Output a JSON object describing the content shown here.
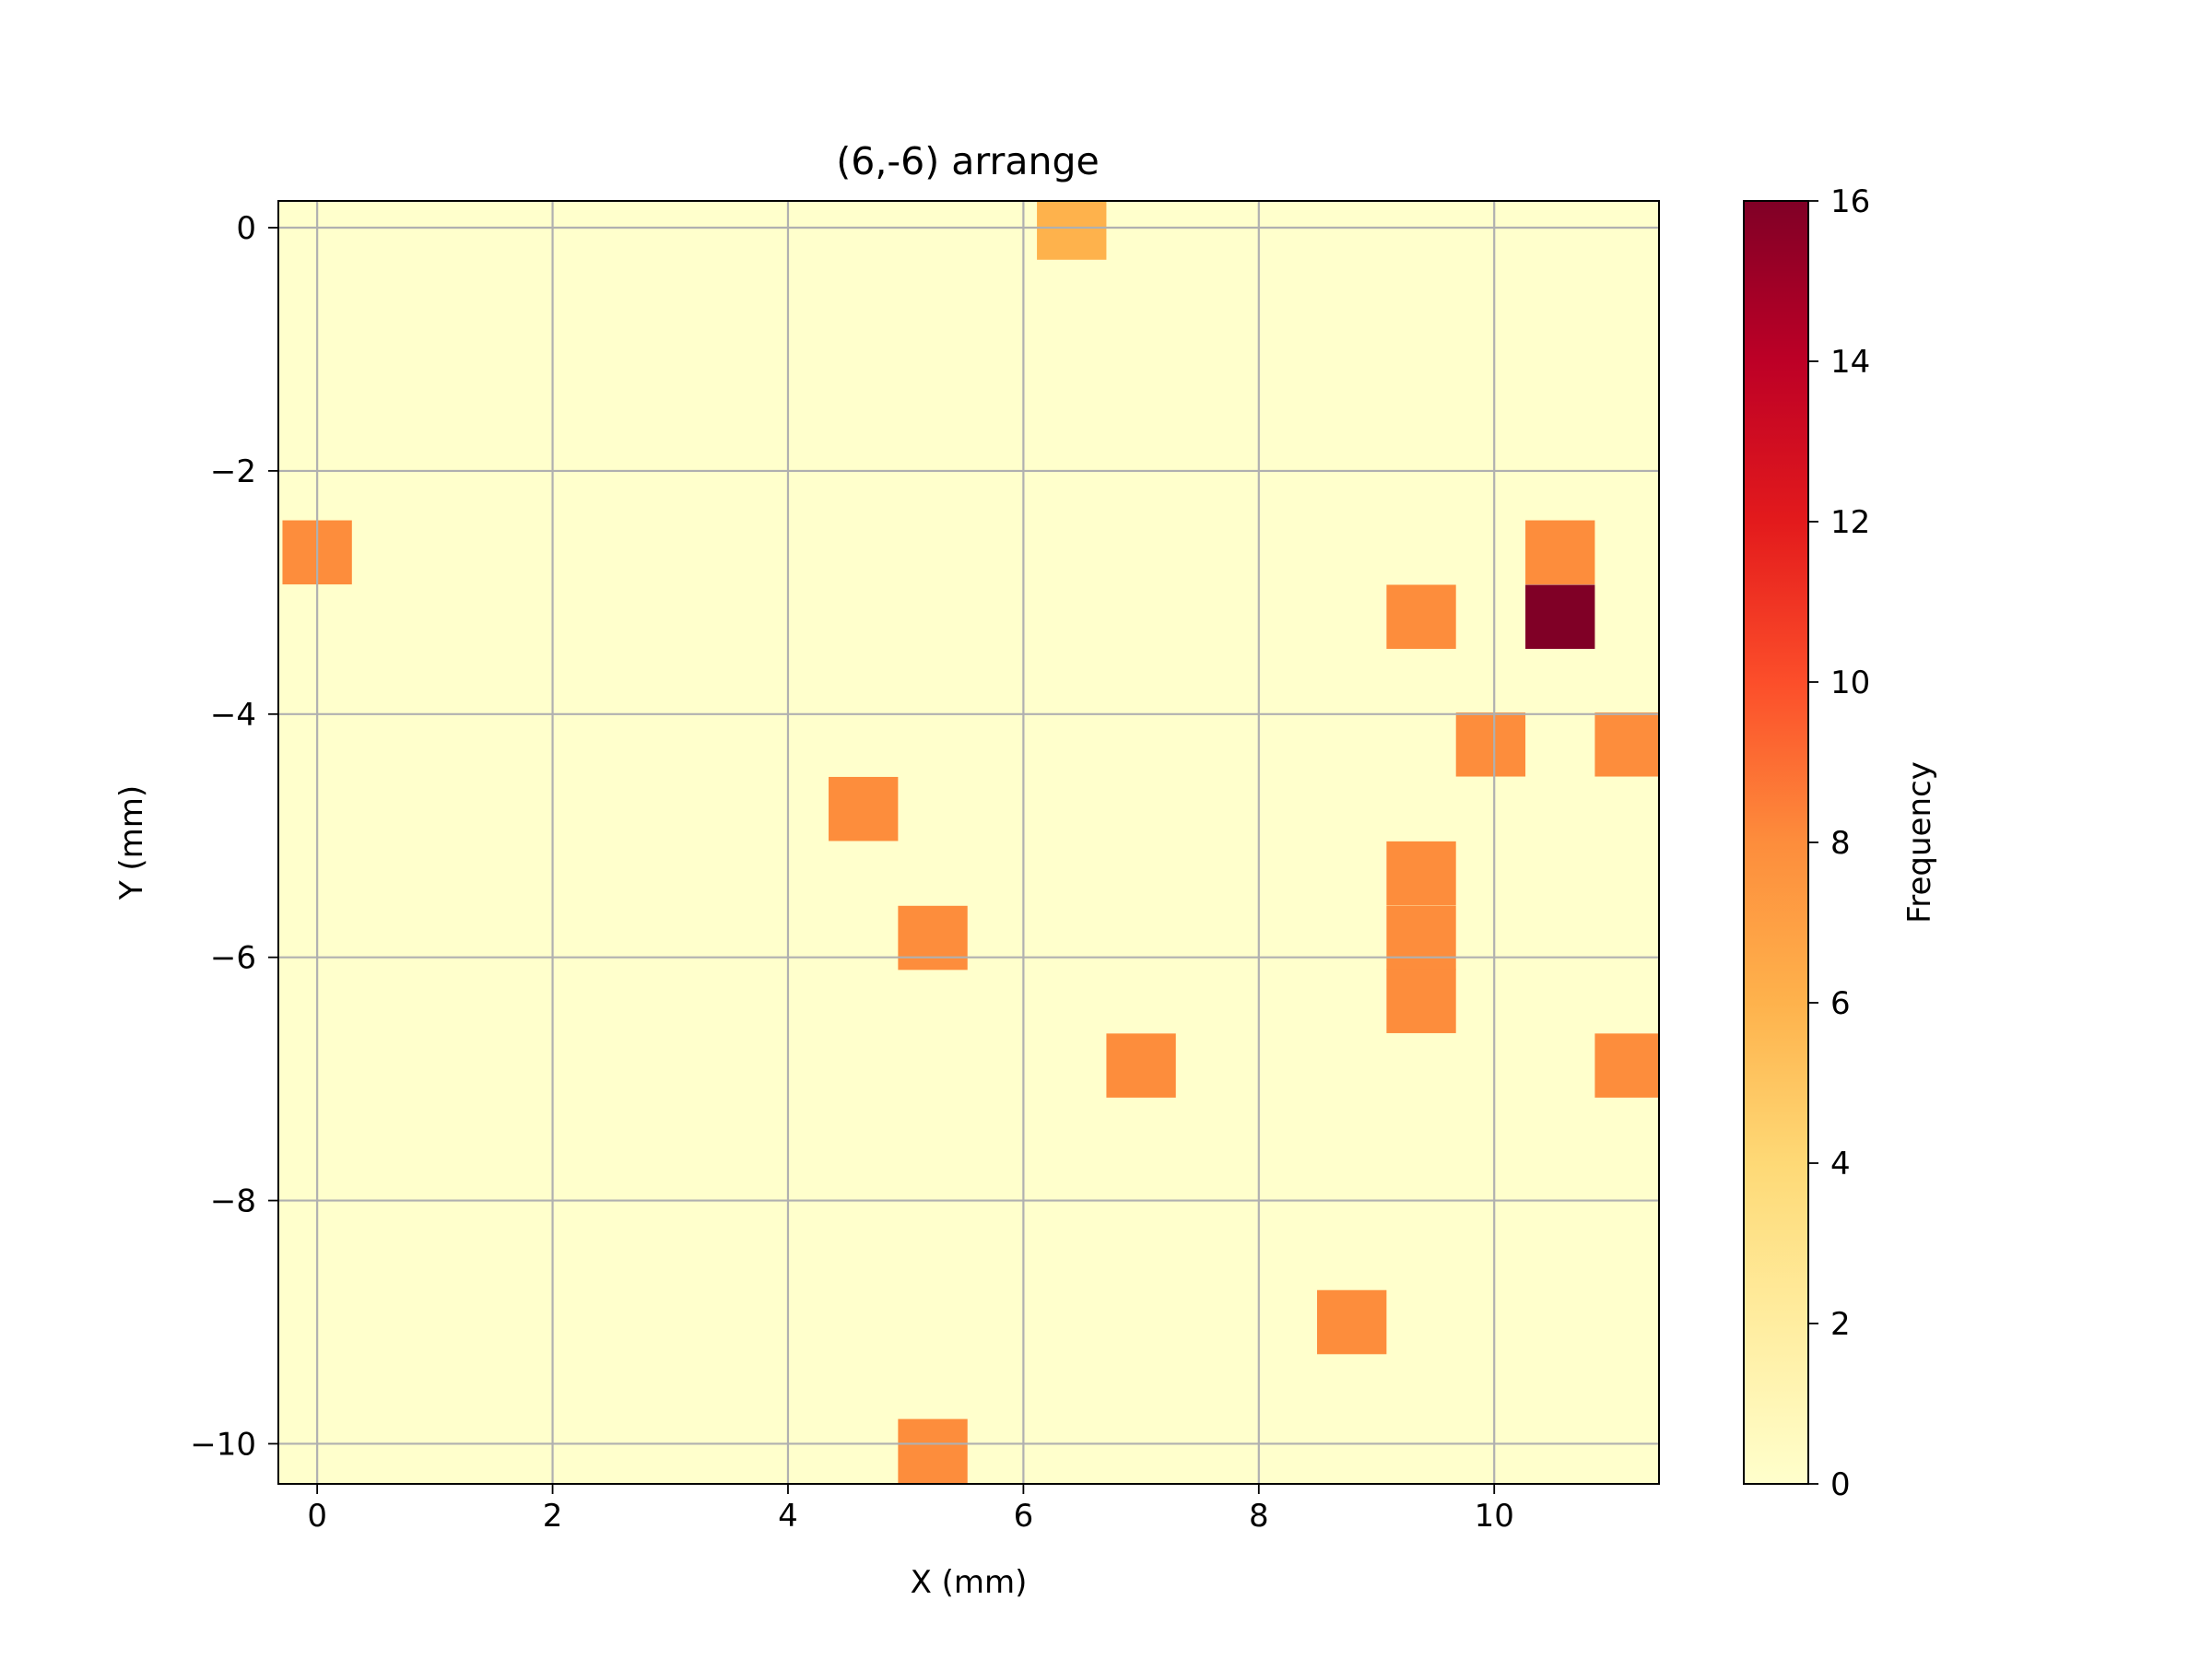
{
  "chart_data": {
    "type": "heatmap",
    "title": "(6,-6) arrange",
    "xlabel": "X (mm)",
    "ylabel": "Y (mm)",
    "colorbar_label": "Frequency",
    "colormap": "YlOrRd",
    "background_value": 0,
    "xlim": [
      -0.33,
      11.4
    ],
    "ylim": [
      -10.33,
      0.22
    ],
    "cell_width": 0.59,
    "cell_height": 0.527,
    "xticks": [
      0,
      2,
      4,
      6,
      8,
      10
    ],
    "yticks": [
      0,
      -2,
      -4,
      -6,
      -8,
      -10
    ],
    "xtick_labels": [
      "0",
      "2",
      "4",
      "6",
      "8",
      "10"
    ],
    "ytick_labels": [
      "0",
      "−2",
      "−4",
      "−6",
      "−8",
      "−10"
    ],
    "color_range": [
      0,
      16
    ],
    "colorbar_ticks": [
      0,
      2,
      4,
      6,
      8,
      10,
      12,
      14,
      16
    ],
    "colorbar_tick_labels": [
      "0",
      "2",
      "4",
      "6",
      "8",
      "10",
      "12",
      "14",
      "16"
    ],
    "grid": true,
    "cells": [
      {
        "x": 6.41,
        "y": 0.0,
        "value": 6
      },
      {
        "x": 0.0,
        "y": -2.67,
        "value": 8
      },
      {
        "x": 10.56,
        "y": -2.67,
        "value": 8
      },
      {
        "x": 9.38,
        "y": -3.2,
        "value": 8
      },
      {
        "x": 10.56,
        "y": -3.2,
        "value": 16
      },
      {
        "x": 9.97,
        "y": -4.25,
        "value": 8
      },
      {
        "x": 11.15,
        "y": -4.25,
        "value": 8
      },
      {
        "x": 4.64,
        "y": -4.78,
        "value": 8
      },
      {
        "x": 9.38,
        "y": -5.31,
        "value": 8
      },
      {
        "x": 5.23,
        "y": -5.84,
        "value": 8
      },
      {
        "x": 9.38,
        "y": -5.84,
        "value": 8
      },
      {
        "x": 9.38,
        "y": -6.36,
        "value": 8
      },
      {
        "x": 7.0,
        "y": -6.89,
        "value": 8
      },
      {
        "x": 11.15,
        "y": -6.89,
        "value": 8
      },
      {
        "x": 8.79,
        "y": -9.0,
        "value": 8
      },
      {
        "x": 5.23,
        "y": -10.06,
        "value": 8
      }
    ]
  }
}
